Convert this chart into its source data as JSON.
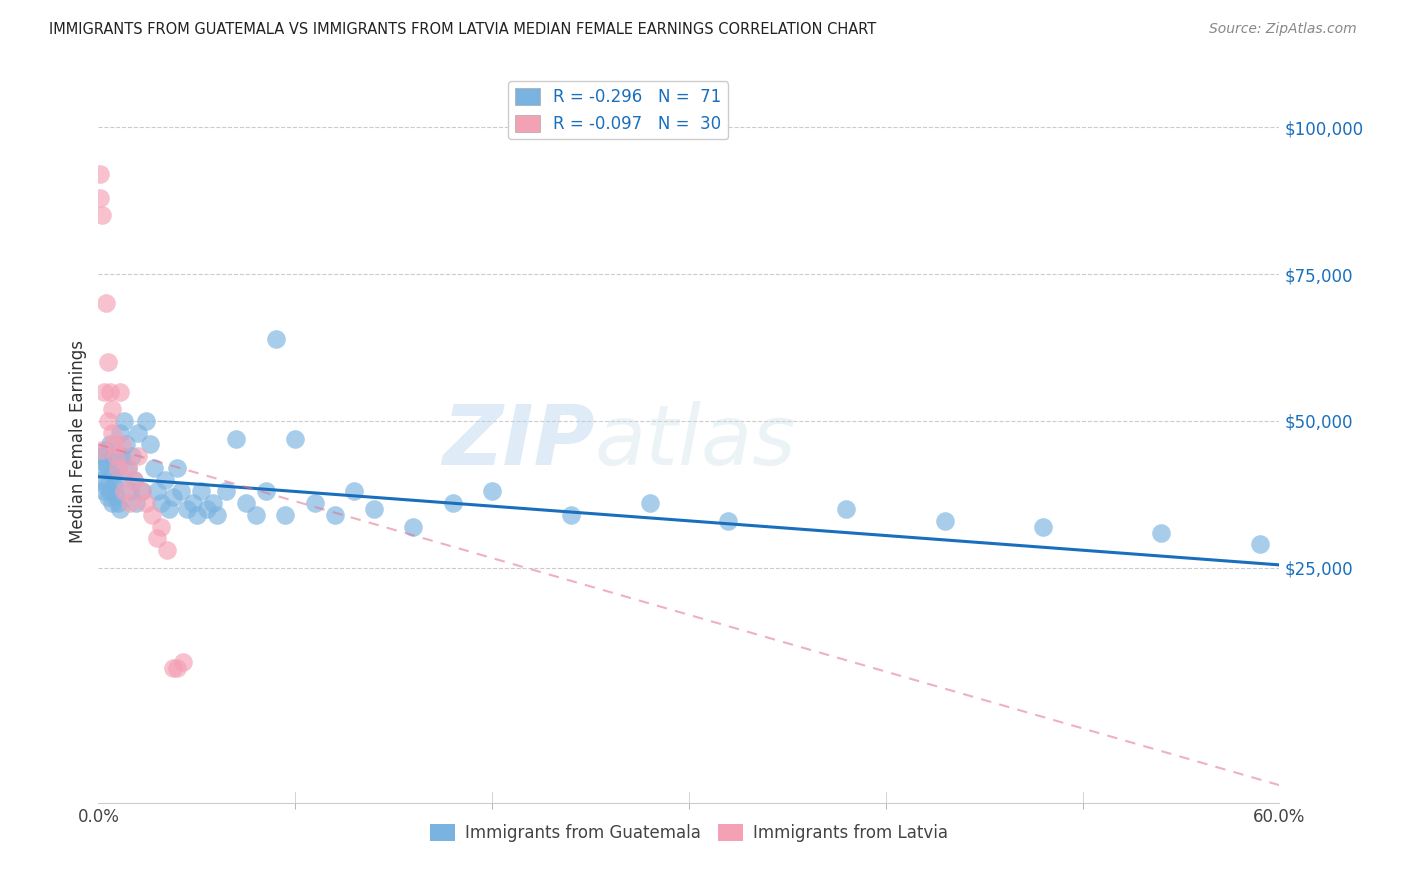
{
  "title": "IMMIGRANTS FROM GUATEMALA VS IMMIGRANTS FROM LATVIA MEDIAN FEMALE EARNINGS CORRELATION CHART",
  "source": "Source: ZipAtlas.com",
  "ylabel": "Median Female Earnings",
  "right_yticks": [
    0,
    25000,
    50000,
    75000,
    100000
  ],
  "right_yticklabels": [
    "",
    "$25,000",
    "$50,000",
    "$75,000",
    "$100,000"
  ],
  "color_guatemala": "#7ab3e0",
  "color_latvia": "#f4a0b5",
  "color_blue_dark": "#1a6fbd",
  "color_pink_dark": "#e07090",
  "watermark_zip": "ZIP",
  "watermark_atlas": "atlas",
  "xlim": [
    0,
    0.6
  ],
  "ylim": [
    -15000,
    108000
  ],
  "guatemala_x": [
    0.001,
    0.002,
    0.002,
    0.003,
    0.003,
    0.004,
    0.004,
    0.005,
    0.005,
    0.006,
    0.006,
    0.007,
    0.007,
    0.008,
    0.008,
    0.009,
    0.009,
    0.01,
    0.01,
    0.011,
    0.011,
    0.012,
    0.013,
    0.014,
    0.015,
    0.016,
    0.017,
    0.018,
    0.019,
    0.02,
    0.022,
    0.024,
    0.026,
    0.028,
    0.03,
    0.032,
    0.034,
    0.036,
    0.038,
    0.04,
    0.042,
    0.045,
    0.048,
    0.05,
    0.052,
    0.055,
    0.058,
    0.06,
    0.065,
    0.07,
    0.075,
    0.08,
    0.085,
    0.09,
    0.095,
    0.1,
    0.11,
    0.12,
    0.13,
    0.14,
    0.16,
    0.18,
    0.2,
    0.24,
    0.28,
    0.32,
    0.38,
    0.43,
    0.48,
    0.54,
    0.59
  ],
  "guatemala_y": [
    42000,
    44000,
    40000,
    38000,
    43000,
    39000,
    45000,
    37000,
    42000,
    38000,
    46000,
    36000,
    41000,
    39000,
    44000,
    37000,
    40000,
    42000,
    36000,
    48000,
    35000,
    44000,
    50000,
    46000,
    42000,
    38000,
    44000,
    40000,
    36000,
    48000,
    38000,
    50000,
    46000,
    42000,
    38000,
    36000,
    40000,
    35000,
    37000,
    42000,
    38000,
    35000,
    36000,
    34000,
    38000,
    35000,
    36000,
    34000,
    38000,
    47000,
    36000,
    34000,
    38000,
    64000,
    34000,
    47000,
    36000,
    34000,
    38000,
    35000,
    32000,
    36000,
    38000,
    34000,
    36000,
    33000,
    35000,
    33000,
    32000,
    31000,
    29000
  ],
  "latvia_x": [
    0.001,
    0.001,
    0.002,
    0.002,
    0.003,
    0.004,
    0.005,
    0.005,
    0.006,
    0.007,
    0.007,
    0.008,
    0.009,
    0.01,
    0.011,
    0.012,
    0.013,
    0.015,
    0.016,
    0.018,
    0.02,
    0.022,
    0.024,
    0.027,
    0.03,
    0.032,
    0.035,
    0.038,
    0.04,
    0.043
  ],
  "latvia_y": [
    88000,
    92000,
    45000,
    85000,
    55000,
    70000,
    60000,
    50000,
    55000,
    48000,
    52000,
    46000,
    44000,
    42000,
    55000,
    46000,
    38000,
    42000,
    36000,
    40000,
    44000,
    38000,
    36000,
    34000,
    30000,
    32000,
    28000,
    8000,
    8000,
    9000
  ],
  "blue_line_y0": 40500,
  "blue_line_y1": 25500,
  "pink_line_y0": 46000,
  "pink_line_y1": -12000
}
